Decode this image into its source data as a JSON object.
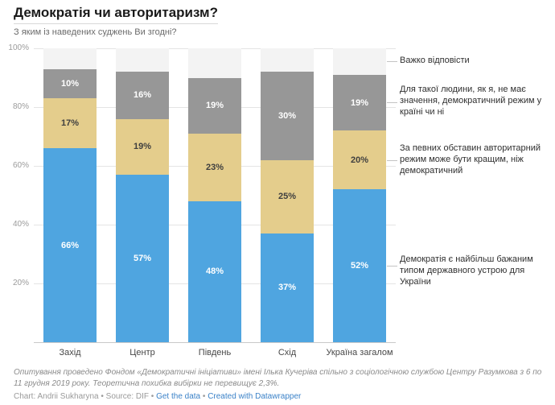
{
  "header": {
    "title": "Демократія чи авторитаризм?",
    "subtitle": "З яким із наведених суджень Ви згодні?"
  },
  "chart_data": {
    "type": "bar",
    "stacked": true,
    "title": "Демократія чи авторитаризм?",
    "subtitle": "З яким із наведених суджень Ви згодні?",
    "categories": [
      "Захід",
      "Центр",
      "Південь",
      "Схід",
      "Україна загалом"
    ],
    "series": [
      {
        "name": "Демократія є найбільш бажаним типом державного устрою для України",
        "color": "#4fa5e0",
        "label_color": "#ffffff",
        "show_labels": true,
        "values": [
          66,
          57,
          48,
          37,
          52
        ]
      },
      {
        "name": "За певних обставин авторитарний режим може бути кращим, ніж демократичний",
        "color": "#e4cd8c",
        "label_color": "#3f3f3f",
        "show_labels": true,
        "values": [
          17,
          19,
          23,
          25,
          20
        ]
      },
      {
        "name": "Для такої людини, як я, не має значення, демократичний режим у країні чи ні",
        "color": "#979797",
        "label_color": "#ffffff",
        "show_labels": true,
        "values": [
          10,
          16,
          19,
          30,
          19
        ]
      },
      {
        "name": "Важко відповісти",
        "color": "#f3f3f3",
        "label_color": "#777777",
        "show_labels": false,
        "values": [
          7,
          8,
          10,
          8,
          9
        ]
      }
    ],
    "ylim": [
      0,
      100
    ],
    "yticks": [
      "20%",
      "40%",
      "60%",
      "80%",
      "100%"
    ],
    "value_suffix": "%",
    "grid": true,
    "legend_position": "right annotations"
  },
  "footer": {
    "note": "Опитування проведено Фондом «Демократичні ініціативи» імені Ілька Кучеріва спільно з соціологічною службою Центру Разумкова з 6 по 11 грудня 2019 року. Теоретична похибка вибірки не перевищує 2,3%.",
    "credit_prefix": "Chart: Andrii Sukharyna • Source: DIF • ",
    "link_get_data": "Get the data",
    "separator": " • ",
    "link_created_with": "Created with Datawrapper"
  }
}
